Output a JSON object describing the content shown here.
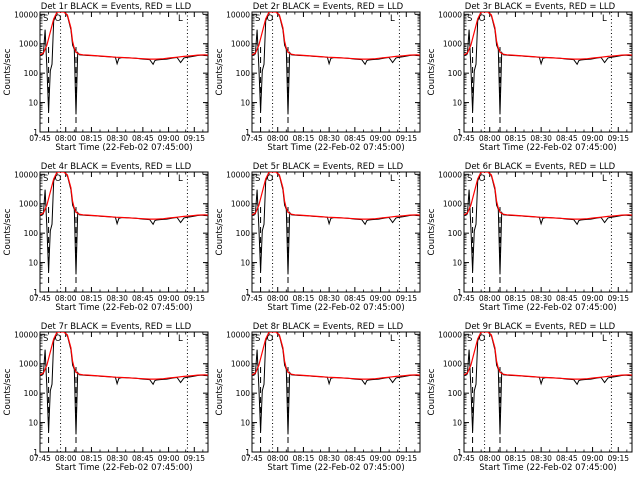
{
  "chart_data": {
    "type": "line",
    "y_scale": "log",
    "ylim": [
      1,
      12000
    ],
    "y_ticks": [
      1,
      10,
      100,
      1000,
      10000
    ],
    "y_tick_labels": [
      "1",
      "10",
      "100",
      "1000",
      "10000"
    ],
    "ylabel": "Counts/sec",
    "xlabel": "Start Time (22-Feb-02 07:45:00)",
    "x_ticks": [
      "07:45",
      "08:00",
      "08:15",
      "08:30",
      "08:45",
      "09:00",
      "09:15"
    ],
    "x_range": [
      "07:45",
      "09:23"
    ],
    "x_tick_minutes": [
      0,
      15,
      30,
      45,
      60,
      75,
      90
    ],
    "x_range_minutes": [
      0,
      98
    ],
    "marker_text": [
      "S",
      "O",
      "L"
    ],
    "colors": {
      "events": "#000000",
      "lld": "#ff0000"
    },
    "panels": [
      {
        "title": "Det 1r BLACK = Events, RED = LLD"
      },
      {
        "title": "Det 2r BLACK = Events, RED = LLD"
      },
      {
        "title": "Det 3r BLACK = Events, RED = LLD"
      },
      {
        "title": "Det 4r BLACK = Events, RED = LLD"
      },
      {
        "title": "Det 5r BLACK = Events, RED = LLD"
      },
      {
        "title": "Det 6r BLACK = Events, RED = LLD"
      },
      {
        "title": "Det 7r BLACK = Events, RED = LLD"
      },
      {
        "title": "Det 8r BLACK = Events, RED = LLD"
      },
      {
        "title": "Det 9r BLACK = Events, RED = LLD"
      }
    ],
    "vertical_lines_minutes": {
      "dashed": [
        5,
        21
      ],
      "dotted": [
        12,
        86
      ]
    },
    "events_series": {
      "name": "Events",
      "x_minutes": [
        0,
        2,
        3,
        4,
        5,
        6,
        7,
        8,
        10,
        12,
        14,
        16,
        18,
        19,
        20,
        21,
        22,
        23,
        25,
        28,
        32,
        36,
        40,
        44,
        45,
        46,
        48,
        52,
        56,
        60,
        64,
        66,
        67,
        68,
        70,
        74,
        78,
        80,
        82,
        84,
        86,
        88,
        90,
        92,
        94,
        96,
        98
      ],
      "y": [
        400,
        450,
        3000,
        150,
        5,
        120,
        200,
        6000,
        12000,
        12000,
        12000,
        9000,
        3000,
        900,
        650,
        4,
        500,
        420,
        410,
        400,
        390,
        370,
        360,
        350,
        210,
        320,
        340,
        330,
        320,
        300,
        290,
        200,
        270,
        280,
        290,
        300,
        330,
        340,
        230,
        330,
        350,
        360,
        380,
        400,
        410,
        400,
        390
      ]
    },
    "lld_series": {
      "name": "LLD",
      "x_minutes": [
        0,
        2,
        4,
        6,
        8,
        10,
        12,
        14,
        16,
        18,
        19,
        20,
        21,
        22,
        23,
        25,
        28,
        32,
        36,
        40,
        44,
        48,
        52,
        56,
        60,
        64,
        68,
        72,
        76,
        80,
        84,
        88,
        92,
        96,
        98
      ],
      "y": [
        420,
        480,
        900,
        2500,
        7000,
        12000,
        12000,
        12000,
        9500,
        3500,
        1200,
        700,
        520,
        470,
        440,
        420,
        410,
        395,
        380,
        365,
        350,
        340,
        330,
        320,
        310,
        300,
        300,
        310,
        330,
        350,
        370,
        390,
        410,
        420,
        410
      ]
    }
  }
}
